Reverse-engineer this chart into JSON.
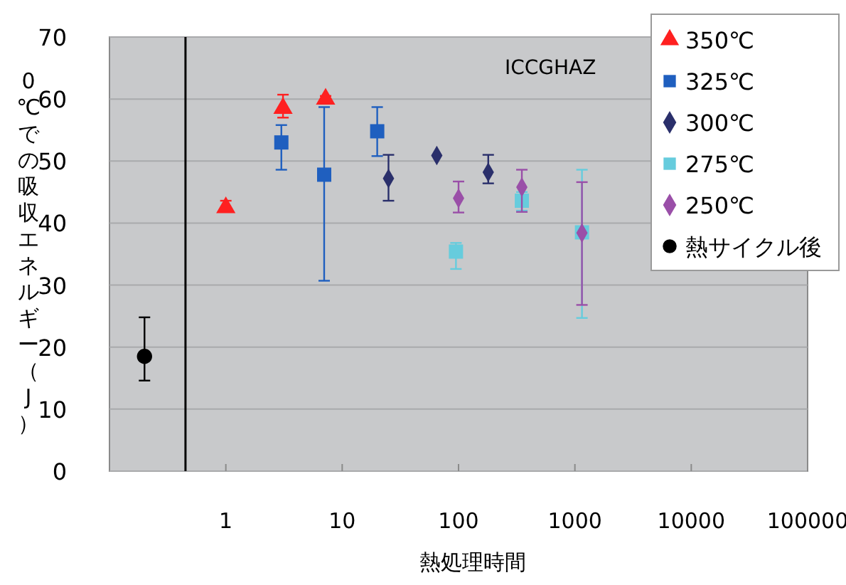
{
  "chart_data": {
    "type": "scatter",
    "xlabel": "熱処理時間",
    "ylabel": "0℃での吸収エネルギー（J）",
    "annotations": [
      "ICCGHAZ"
    ],
    "log": "x",
    "xlim": [
      0.1,
      100000
    ],
    "xticks": [
      1,
      10,
      100,
      1000,
      10000,
      100000
    ],
    "ylim": [
      0,
      70
    ],
    "yticks": [
      0,
      10,
      20,
      30,
      40,
      50,
      60,
      70
    ],
    "grid": "y",
    "legend": "top right",
    "ref_lines": [
      {
        "axis": "x",
        "value": 0.45,
        "color": "#000000"
      }
    ],
    "series": [
      {
        "name": "350℃",
        "color": "#ff2020",
        "marker": "triangle",
        "x": [
          1,
          3.1,
          7.2
        ],
        "values": [
          42.5,
          58.5,
          60
        ],
        "errors": [
          [
            42,
            43.6
          ],
          [
            57,
            60.7
          ],
          [
            59.5,
            60.5
          ]
        ]
      },
      {
        "name": "325℃",
        "color": "#1f5fbf",
        "marker": "square",
        "x": [
          3,
          7,
          20
        ],
        "values": [
          53,
          47.8,
          54.8
        ],
        "errors": [
          [
            48.6,
            55.8
          ],
          [
            30.7,
            58.7
          ],
          [
            50.8,
            58.7
          ]
        ]
      },
      {
        "name": "300℃",
        "color": "#2a2f6b",
        "marker": "diamond",
        "x": [
          25,
          65,
          180
        ],
        "values": [
          47.2,
          50.9,
          48.2
        ],
        "errors": [
          [
            43.6,
            51
          ],
          null,
          [
            46.4,
            51
          ]
        ]
      },
      {
        "name": "275℃",
        "color": "#66ccdd",
        "marker": "square",
        "x": [
          95,
          350,
          1150
        ],
        "values": [
          35.4,
          43.6,
          38.5
        ],
        "errors": [
          [
            32.6,
            36.8
          ],
          [
            42,
            45
          ],
          [
            24.7,
            48.6
          ]
        ]
      },
      {
        "name": "250℃",
        "color": "#9a4fa8",
        "marker": "diamond",
        "x": [
          100,
          350,
          1150
        ],
        "values": [
          44,
          45.8,
          38.4
        ],
        "errors": [
          [
            41.7,
            46.7
          ],
          [
            41.8,
            48.6
          ],
          [
            26.8,
            46.6
          ]
        ]
      },
      {
        "name": "熱サイクル後",
        "color": "#000000",
        "marker": "circle",
        "x": [
          0.2
        ],
        "values": [
          18.5
        ],
        "errors": [
          [
            14.6,
            24.8
          ]
        ]
      }
    ]
  }
}
